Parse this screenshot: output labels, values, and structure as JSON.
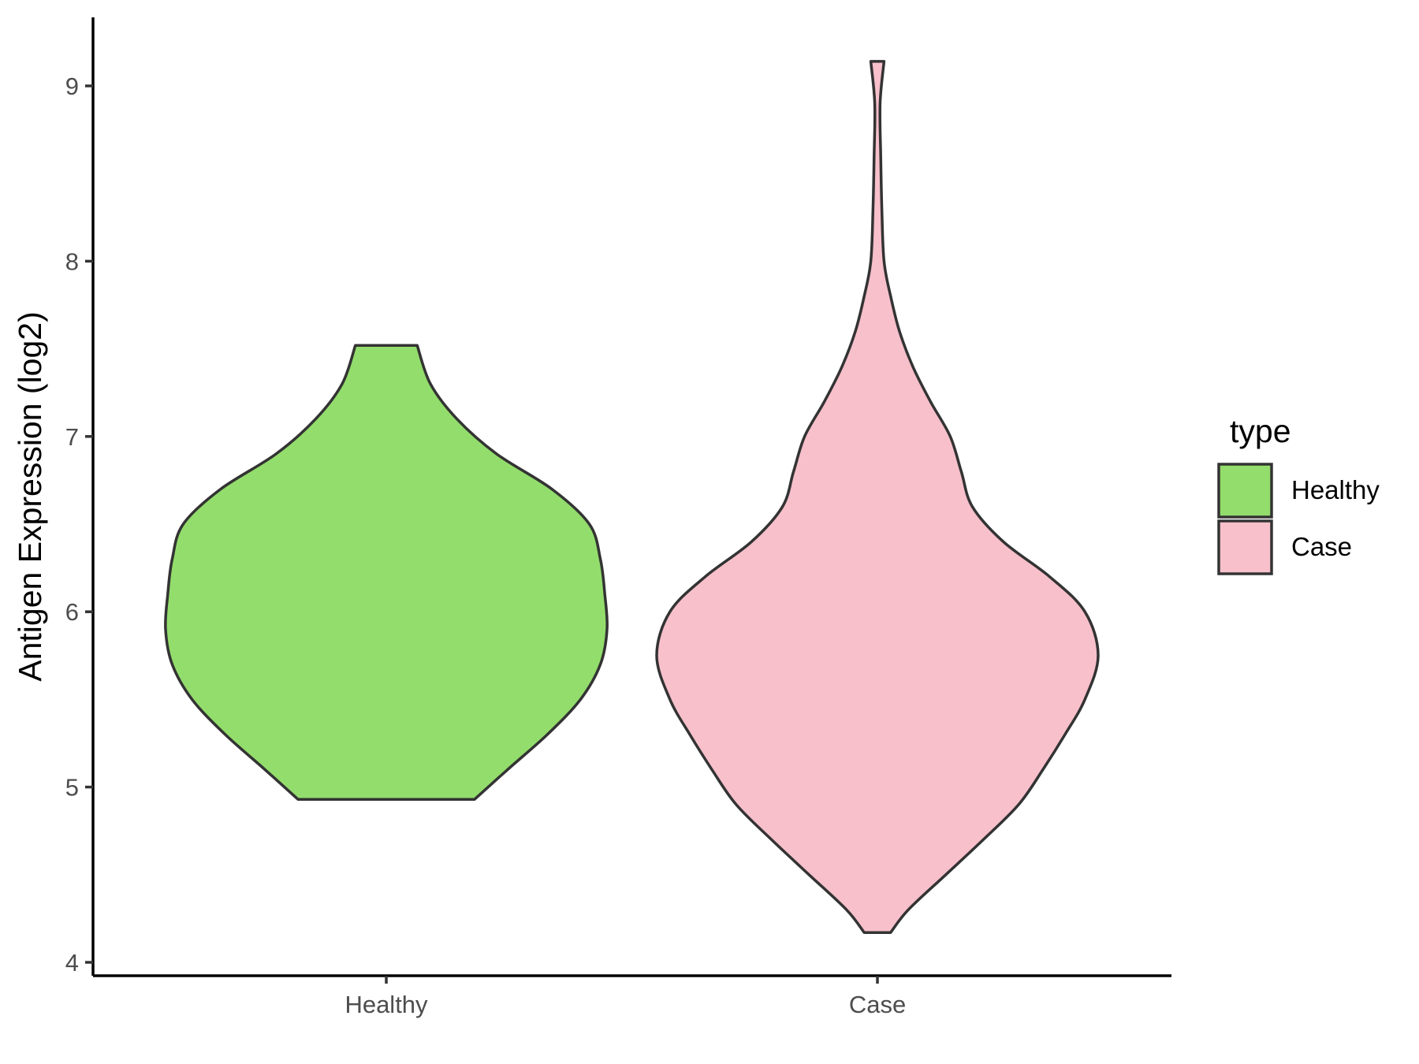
{
  "chart_data": {
    "type": "violin",
    "title": "",
    "xlabel": "",
    "ylabel": "Antigen Expression (log2)",
    "ylim": [
      3.92,
      9.38
    ],
    "yticks": [
      4,
      5,
      6,
      7,
      8,
      9
    ],
    "categories": [
      "Healthy",
      "Case"
    ],
    "legend": {
      "title": "type",
      "position": "right",
      "entries": [
        {
          "label": "Healthy",
          "color": "#93dd6c"
        },
        {
          "label": "Case",
          "color": "#f7c0cb"
        }
      ]
    },
    "grid": false,
    "series": [
      {
        "name": "Healthy",
        "color": "#93dd6c",
        "min": 4.93,
        "max": 7.52,
        "density_profile": [
          {
            "y": 4.93,
            "w": 0.4
          },
          {
            "y": 5.1,
            "w": 0.55
          },
          {
            "y": 5.3,
            "w": 0.73
          },
          {
            "y": 5.5,
            "w": 0.88
          },
          {
            "y": 5.7,
            "w": 0.97
          },
          {
            "y": 5.9,
            "w": 1.0
          },
          {
            "y": 6.1,
            "w": 0.99
          },
          {
            "y": 6.3,
            "w": 0.97
          },
          {
            "y": 6.5,
            "w": 0.92
          },
          {
            "y": 6.7,
            "w": 0.75
          },
          {
            "y": 6.9,
            "w": 0.5
          },
          {
            "y": 7.1,
            "w": 0.32
          },
          {
            "y": 7.3,
            "w": 0.2
          },
          {
            "y": 7.52,
            "w": 0.14
          }
        ]
      },
      {
        "name": "Case",
        "color": "#f7c0cb",
        "min": 4.17,
        "max": 9.14,
        "density_profile": [
          {
            "y": 4.17,
            "w": 0.06
          },
          {
            "y": 4.3,
            "w": 0.14
          },
          {
            "y": 4.5,
            "w": 0.31
          },
          {
            "y": 4.7,
            "w": 0.48
          },
          {
            "y": 4.9,
            "w": 0.64
          },
          {
            "y": 5.1,
            "w": 0.75
          },
          {
            "y": 5.3,
            "w": 0.85
          },
          {
            "y": 5.5,
            "w": 0.94
          },
          {
            "y": 5.75,
            "w": 1.0
          },
          {
            "y": 6.0,
            "w": 0.94
          },
          {
            "y": 6.2,
            "w": 0.78
          },
          {
            "y": 6.4,
            "w": 0.57
          },
          {
            "y": 6.6,
            "w": 0.43
          },
          {
            "y": 6.8,
            "w": 0.38
          },
          {
            "y": 7.0,
            "w": 0.33
          },
          {
            "y": 7.2,
            "w": 0.24
          },
          {
            "y": 7.4,
            "w": 0.16
          },
          {
            "y": 7.6,
            "w": 0.1
          },
          {
            "y": 7.8,
            "w": 0.06
          },
          {
            "y": 8.0,
            "w": 0.03
          },
          {
            "y": 8.3,
            "w": 0.02
          },
          {
            "y": 8.6,
            "w": 0.015
          },
          {
            "y": 8.9,
            "w": 0.012
          },
          {
            "y": 9.14,
            "w": 0.03
          }
        ]
      }
    ]
  }
}
